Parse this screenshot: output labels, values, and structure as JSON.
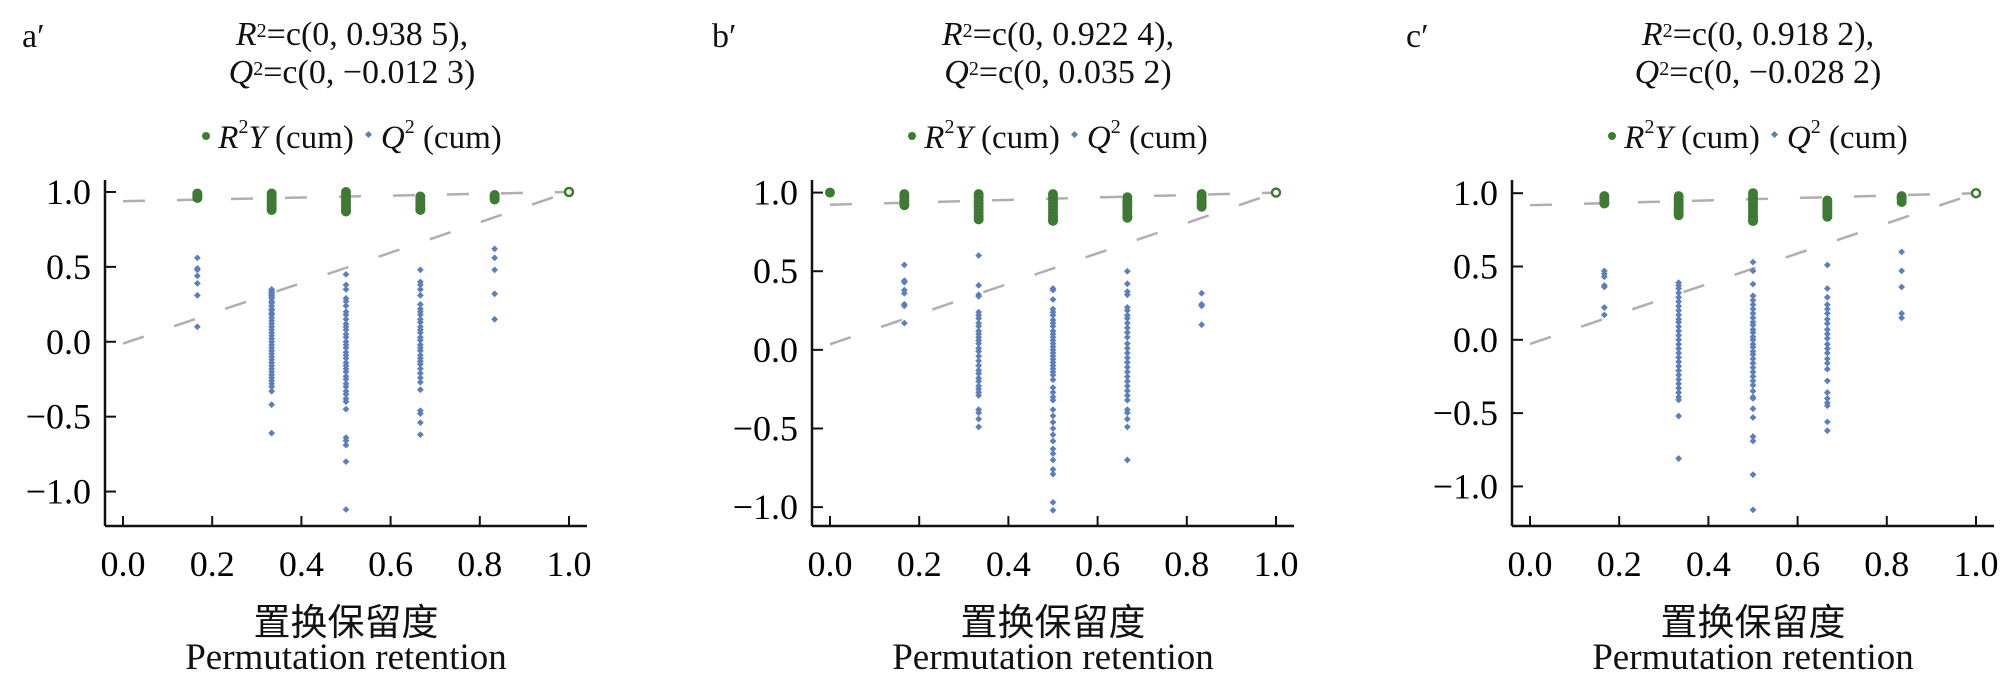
{
  "x_label_cn": "置换保留度",
  "x_label_en": "Permutation retention",
  "legend": {
    "r2y": {
      "var": "R",
      "sup": "2",
      "var2": "Y",
      "text": " (cum)"
    },
    "q2": {
      "var": "Q",
      "sup": "2",
      "text": " (cum)"
    }
  },
  "colors": {
    "r2y": "#3f7a34",
    "q2": "#5b7fbd",
    "regression_line": "#b3adad",
    "axis": "#111111"
  },
  "panels": [
    {
      "label": "a′",
      "title": [
        {
          "var": "R",
          "sup": "2",
          "text": "=c(0, 0.938 5),"
        },
        {
          "var": "Q",
          "sup": "2",
          "text": "=c(0, −0.012 3)"
        }
      ]
    },
    {
      "label": "b′",
      "title": [
        {
          "var": "R",
          "sup": "2",
          "text": "=c(0, 0.922 4),"
        },
        {
          "var": "Q",
          "sup": "2",
          "text": "=c(0, 0.035 2)"
        }
      ]
    },
    {
      "label": "c′",
      "title": [
        {
          "var": "R",
          "sup": "2",
          "text": "=c(0, 0.918 2),"
        },
        {
          "var": "Q",
          "sup": "2",
          "text": "=c(0, −0.028 2)"
        }
      ]
    }
  ],
  "chart_data": [
    {
      "type": "scatter",
      "title": "a′",
      "xlabel": "置换保留度 / Permutation retention",
      "ylabel": "",
      "xlim": [
        -0.04,
        1.04
      ],
      "ylim": [
        -1.23,
        1.08
      ],
      "xticks": [
        "0.0",
        "0.2",
        "0.4",
        "0.6",
        "0.8",
        "1.0"
      ],
      "xtick_values": [
        0,
        0.2,
        0.4,
        0.6,
        0.8,
        1.0
      ],
      "yticks": [
        "1.0",
        "0.5",
        "0.0",
        "−0.5",
        "−1.0"
      ],
      "ytick_values": [
        1,
        0.5,
        0,
        -0.5,
        -1
      ],
      "legend": "top",
      "regression_lines": [
        {
          "name": "R2Y (cum)",
          "intercept": 0.9385,
          "end": [
            1.0,
            1.0
          ]
        },
        {
          "name": "Q2 (cum)",
          "intercept": -0.0123,
          "end": [
            1.0,
            1.0
          ]
        }
      ],
      "series": [
        {
          "name": "R2Y (cum)",
          "points": [
            {
              "x": 0.1667,
              "y": [
                0.99,
                0.98,
                0.97,
                0.96
              ]
            },
            {
              "x": 0.3333,
              "y": [
                0.99,
                0.97,
                0.95,
                0.93,
                0.91,
                0.89,
                0.88
              ]
            },
            {
              "x": 0.5,
              "y": [
                1.0,
                0.98,
                0.96,
                0.94,
                0.92,
                0.9,
                0.88,
                0.87
              ]
            },
            {
              "x": 0.6667,
              "y": [
                0.97,
                0.95,
                0.93,
                0.91,
                0.89,
                0.88
              ]
            },
            {
              "x": 0.8333,
              "y": [
                0.98,
                0.97,
                0.96,
                0.95
              ]
            },
            {
              "x": 1.0,
              "y": [
                1.0
              ]
            }
          ]
        },
        {
          "name": "Q2 (cum)",
          "points": [
            {
              "x": 0.1667,
              "y": [
                0.56,
                0.49,
                0.48,
                0.44,
                0.39,
                0.31,
                0.1
              ]
            },
            {
              "x": 0.3333,
              "y": [
                0.35,
                0.34,
                0.33,
                0.32,
                0.31,
                0.3,
                0.29,
                0.27,
                0.26,
                0.24,
                0.22,
                0.21,
                0.19,
                0.18,
                0.16,
                0.14,
                0.12,
                0.1,
                0.08,
                0.06,
                0.04,
                0.02,
                0.0,
                -0.02,
                -0.04,
                -0.06,
                -0.08,
                -0.1,
                -0.12,
                -0.14,
                -0.16,
                -0.18,
                -0.2,
                -0.22,
                -0.24,
                -0.26,
                -0.28,
                -0.3,
                -0.33,
                -0.42,
                -0.61
              ]
            },
            {
              "x": 0.5,
              "y": [
                0.45,
                0.38,
                0.35,
                0.29,
                0.27,
                0.24,
                0.2,
                0.18,
                0.15,
                0.12,
                0.1,
                0.08,
                0.05,
                0.03,
                0.0,
                -0.02,
                -0.04,
                -0.07,
                -0.09,
                -0.11,
                -0.14,
                -0.16,
                -0.18,
                -0.2,
                -0.23,
                -0.25,
                -0.28,
                -0.3,
                -0.33,
                -0.35,
                -0.38,
                -0.4,
                -0.45,
                -0.64,
                -0.66,
                -0.69,
                -0.8,
                -1.12
              ]
            },
            {
              "x": 0.6667,
              "y": [
                0.48,
                0.4,
                0.38,
                0.35,
                0.31,
                0.25,
                0.22,
                0.2,
                0.18,
                0.15,
                0.13,
                0.1,
                0.08,
                0.06,
                0.03,
                0.01,
                -0.02,
                -0.04,
                -0.06,
                -0.09,
                -0.11,
                -0.13,
                -0.15,
                -0.18,
                -0.21,
                -0.24,
                -0.27,
                -0.32,
                -0.46,
                -0.48,
                -0.54,
                -0.62
              ]
            },
            {
              "x": 0.8333,
              "y": [
                0.62,
                0.56,
                0.48,
                0.32,
                0.15
              ]
            }
          ]
        }
      ]
    },
    {
      "type": "scatter",
      "title": "b′",
      "xlabel": "置换保留度 / Permutation retention",
      "ylabel": "",
      "xlim": [
        -0.04,
        1.04
      ],
      "ylim": [
        -1.12,
        1.08
      ],
      "xticks": [
        "0.0",
        "0.2",
        "0.4",
        "0.6",
        "0.8",
        "1.0"
      ],
      "xtick_values": [
        0,
        0.2,
        0.4,
        0.6,
        0.8,
        1.0
      ],
      "yticks": [
        "1.0",
        "0.5",
        "0.0",
        "−0.5",
        "−1.0"
      ],
      "ytick_values": [
        1,
        0.5,
        0,
        -0.5,
        -1
      ],
      "legend": "top",
      "regression_lines": [
        {
          "name": "R2Y (cum)",
          "intercept": 0.9224,
          "end": [
            1.0,
            1.0
          ]
        },
        {
          "name": "Q2 (cum)",
          "intercept": 0.0352,
          "end": [
            1.0,
            1.0
          ]
        }
      ],
      "series": [
        {
          "name": "R2Y (cum)",
          "points": [
            {
              "x": 0.0,
              "y": [
                1.0
              ]
            },
            {
              "x": 0.1667,
              "y": [
                0.99,
                0.97,
                0.95,
                0.93,
                0.92
              ]
            },
            {
              "x": 0.3333,
              "y": [
                0.99,
                0.97,
                0.95,
                0.93,
                0.91,
                0.89,
                0.87,
                0.85,
                0.83
              ]
            },
            {
              "x": 0.5,
              "y": [
                0.99,
                0.97,
                0.95,
                0.93,
                0.91,
                0.89,
                0.87,
                0.85,
                0.83,
                0.82
              ]
            },
            {
              "x": 0.6667,
              "y": [
                0.97,
                0.95,
                0.93,
                0.91,
                0.89,
                0.87,
                0.85,
                0.84
              ]
            },
            {
              "x": 0.8333,
              "y": [
                0.99,
                0.97,
                0.95,
                0.93,
                0.91
              ]
            },
            {
              "x": 1.0,
              "y": [
                1.0
              ]
            }
          ]
        },
        {
          "name": "Q2 (cum)",
          "points": [
            {
              "x": 0.1667,
              "y": [
                0.54,
                0.44,
                0.43,
                0.38,
                0.36,
                0.29,
                0.28,
                0.17
              ]
            },
            {
              "x": 0.3333,
              "y": [
                0.6,
                0.41,
                0.35,
                0.34,
                0.24,
                0.22,
                0.2,
                0.17,
                0.15,
                0.12,
                0.1,
                0.08,
                0.06,
                0.04,
                0.01,
                -0.01,
                -0.04,
                -0.07,
                -0.1,
                -0.13,
                -0.15,
                -0.18,
                -0.2,
                -0.23,
                -0.25,
                -0.27,
                -0.29,
                -0.38,
                -0.4,
                -0.44,
                -0.49
              ]
            },
            {
              "x": 0.5,
              "y": [
                0.39,
                0.38,
                0.32,
                0.26,
                0.24,
                0.22,
                0.19,
                0.17,
                0.15,
                0.12,
                0.1,
                0.08,
                0.06,
                0.04,
                0.02,
                0.0,
                -0.02,
                -0.04,
                -0.06,
                -0.08,
                -0.1,
                -0.12,
                -0.14,
                -0.16,
                -0.19,
                -0.24,
                -0.27,
                -0.3,
                -0.32,
                -0.38,
                -0.42,
                -0.46,
                -0.5,
                -0.54,
                -0.58,
                -0.63,
                -0.66,
                -0.7,
                -0.76,
                -0.79,
                -0.97,
                -1.02
              ]
            },
            {
              "x": 0.6667,
              "y": [
                0.5,
                0.42,
                0.37,
                0.35,
                0.27,
                0.25,
                0.22,
                0.2,
                0.17,
                0.14,
                0.11,
                0.08,
                0.04,
                0.01,
                -0.02,
                -0.05,
                -0.08,
                -0.11,
                -0.14,
                -0.17,
                -0.2,
                -0.23,
                -0.26,
                -0.29,
                -0.32,
                -0.38,
                -0.4,
                -0.44,
                -0.49,
                -0.7
              ]
            },
            {
              "x": 0.8333,
              "y": [
                0.36,
                0.29,
                0.28,
                0.16
              ]
            }
          ]
        }
      ]
    },
    {
      "type": "scatter",
      "title": "c′",
      "xlabel": "置换保留度 / Permutation retention",
      "ylabel": "",
      "xlim": [
        -0.04,
        1.04
      ],
      "ylim": [
        -1.27,
        1.09
      ],
      "xticks": [
        "0.0",
        "0.2",
        "0.4",
        "0.6",
        "0.8",
        "1.0"
      ],
      "xtick_values": [
        0,
        0.2,
        0.4,
        0.6,
        0.8,
        1.0
      ],
      "yticks": [
        "1.0",
        "0.5",
        "0.0",
        "−0.5",
        "−1.0"
      ],
      "ytick_values": [
        1,
        0.5,
        0,
        -0.5,
        -1
      ],
      "legend": "top",
      "regression_lines": [
        {
          "name": "R2Y (cum)",
          "intercept": 0.9182,
          "end": [
            1.0,
            1.0
          ]
        },
        {
          "name": "Q2 (cum)",
          "intercept": -0.0282,
          "end": [
            1.0,
            1.0
          ]
        }
      ],
      "series": [
        {
          "name": "R2Y (cum)",
          "points": [
            {
              "x": 0.1667,
              "y": [
                0.98,
                0.96,
                0.94,
                0.93
              ]
            },
            {
              "x": 0.3333,
              "y": [
                0.98,
                0.96,
                0.94,
                0.92,
                0.9,
                0.88,
                0.86,
                0.85
              ]
            },
            {
              "x": 0.5,
              "y": [
                1.0,
                0.98,
                0.96,
                0.94,
                0.92,
                0.9,
                0.88,
                0.86,
                0.84,
                0.82,
                0.81
              ]
            },
            {
              "x": 0.6667,
              "y": [
                0.95,
                0.93,
                0.91,
                0.89,
                0.87,
                0.85,
                0.84
              ]
            },
            {
              "x": 0.8333,
              "y": [
                0.98,
                0.97,
                0.96,
                0.94
              ]
            },
            {
              "x": 1.0,
              "y": [
                1.0
              ]
            }
          ]
        },
        {
          "name": "Q2 (cum)",
          "points": [
            {
              "x": 0.1667,
              "y": [
                0.47,
                0.45,
                0.43,
                0.37,
                0.36,
                0.22,
                0.17
              ]
            },
            {
              "x": 0.3333,
              "y": [
                0.39,
                0.37,
                0.35,
                0.32,
                0.29,
                0.26,
                0.23,
                0.2,
                0.17,
                0.14,
                0.12,
                0.09,
                0.06,
                0.03,
                0.0,
                -0.03,
                -0.06,
                -0.09,
                -0.12,
                -0.15,
                -0.18,
                -0.21,
                -0.24,
                -0.27,
                -0.3,
                -0.33,
                -0.36,
                -0.39,
                -0.41,
                -0.52,
                -0.81
              ]
            },
            {
              "x": 0.5,
              "y": [
                0.53,
                0.47,
                0.38,
                0.3,
                0.27,
                0.24,
                0.21,
                0.18,
                0.15,
                0.12,
                0.1,
                0.07,
                0.05,
                0.02,
                0.0,
                -0.03,
                -0.05,
                -0.08,
                -0.1,
                -0.13,
                -0.16,
                -0.19,
                -0.22,
                -0.25,
                -0.28,
                -0.31,
                -0.35,
                -0.39,
                -0.4,
                -0.47,
                -0.53,
                -0.66,
                -0.69,
                -0.92,
                -1.16
              ]
            },
            {
              "x": 0.6667,
              "y": [
                0.51,
                0.35,
                0.29,
                0.24,
                0.21,
                0.18,
                0.14,
                0.11,
                0.07,
                0.04,
                0.01,
                -0.03,
                -0.06,
                -0.09,
                -0.13,
                -0.16,
                -0.2,
                -0.28,
                -0.36,
                -0.4,
                -0.43,
                -0.45,
                -0.56,
                -0.62
              ]
            },
            {
              "x": 0.8333,
              "y": [
                0.6,
                0.47,
                0.36,
                0.18,
                0.15
              ]
            }
          ]
        }
      ]
    }
  ]
}
